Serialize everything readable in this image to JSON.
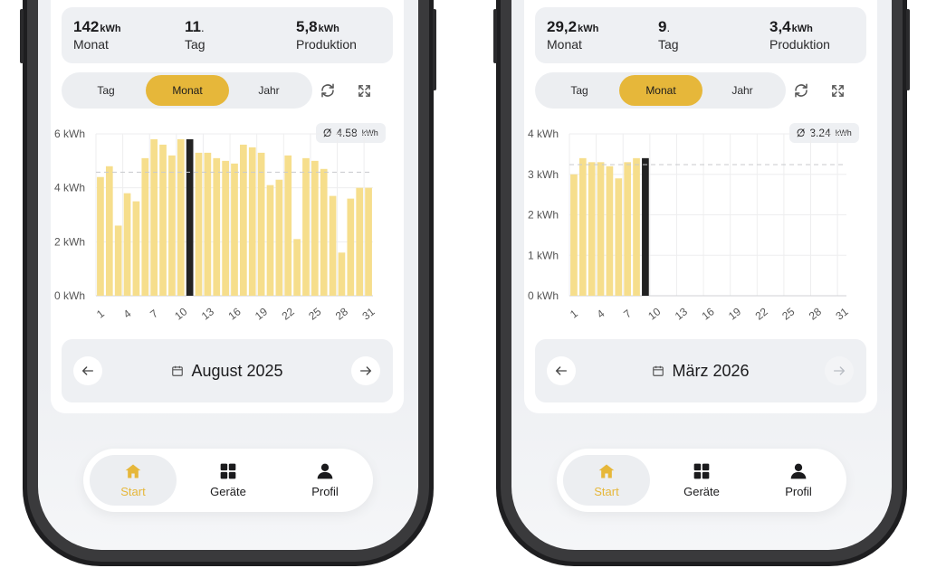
{
  "phones": [
    {
      "stats": {
        "month_value": "142",
        "month_unit": "kWh",
        "month_label": "Monat",
        "day_value": "11",
        "day_suffix": ".",
        "day_label": "Tag",
        "production_value": "5,8",
        "production_unit": "kWh",
        "production_label": "Produktion"
      },
      "segments": [
        "Tag",
        "Monat",
        "Jahr"
      ],
      "active_segment": "Monat",
      "average": {
        "prefix": "Ø",
        "value": "4.58",
        "unit": "kWh"
      },
      "period_label": "August 2025",
      "next_enabled": true,
      "chart_data": {
        "type": "bar",
        "x": [
          1,
          2,
          3,
          4,
          5,
          6,
          7,
          8,
          9,
          10,
          11,
          12,
          13,
          14,
          15,
          16,
          17,
          18,
          19,
          20,
          21,
          22,
          23,
          24,
          25,
          26,
          27,
          28,
          29,
          30,
          31
        ],
        "values": [
          4.4,
          4.8,
          2.6,
          3.8,
          3.5,
          5.1,
          5.8,
          5.6,
          5.2,
          5.8,
          5.8,
          5.3,
          5.3,
          5.1,
          5.0,
          4.9,
          5.6,
          5.5,
          5.3,
          4.1,
          4.3,
          5.2,
          2.1,
          5.1,
          5.0,
          4.7,
          3.7,
          1.6,
          3.6,
          4.0,
          4.0
        ],
        "selected_index": 10,
        "average": 4.58,
        "ylim": [
          0,
          6
        ],
        "yticks": [
          0,
          2,
          4,
          6
        ],
        "ytick_labels": [
          "0 kWh",
          "2 kWh",
          "4 kWh",
          "6 kWh"
        ],
        "xtick_labels": [
          "1",
          "4",
          "7",
          "10",
          "13",
          "16",
          "19",
          "22",
          "25",
          "28",
          "31"
        ],
        "bar_color": "#f6de8c",
        "selected_color": "#222222"
      }
    },
    {
      "stats": {
        "month_value": "29,2",
        "month_unit": "kWh",
        "month_label": "Monat",
        "day_value": "9",
        "day_suffix": ".",
        "day_label": "Tag",
        "production_value": "3,4",
        "production_unit": "kWh",
        "production_label": "Produktion"
      },
      "segments": [
        "Tag",
        "Monat",
        "Jahr"
      ],
      "active_segment": "Monat",
      "average": {
        "prefix": "Ø",
        "value": "3.24",
        "unit": "kWh"
      },
      "period_label": "März 2026",
      "next_enabled": false,
      "chart_data": {
        "type": "bar",
        "x": [
          1,
          2,
          3,
          4,
          5,
          6,
          7,
          8,
          9,
          10,
          11,
          12,
          13,
          14,
          15,
          16,
          17,
          18,
          19,
          20,
          21,
          22,
          23,
          24,
          25,
          26,
          27,
          28,
          29,
          30,
          31
        ],
        "values": [
          3.0,
          3.4,
          3.3,
          3.3,
          3.2,
          2.9,
          3.3,
          3.4,
          3.4,
          null,
          null,
          null,
          null,
          null,
          null,
          null,
          null,
          null,
          null,
          null,
          null,
          null,
          null,
          null,
          null,
          null,
          null,
          null,
          null,
          null,
          null
        ],
        "selected_index": 8,
        "average": 3.24,
        "ylim": [
          0,
          4
        ],
        "yticks": [
          0,
          1,
          2,
          3,
          4
        ],
        "ytick_labels": [
          "0 kWh",
          "1 kWh",
          "2 kWh",
          "3 kWh",
          "4 kWh"
        ],
        "xtick_labels": [
          "1",
          "4",
          "7",
          "10",
          "13",
          "16",
          "19",
          "22",
          "25",
          "28",
          "31"
        ],
        "bar_color": "#f6de8c",
        "selected_color": "#222222"
      }
    }
  ],
  "tabbar": {
    "items": [
      {
        "label": "Start",
        "icon": "home-icon"
      },
      {
        "label": "Geräte",
        "icon": "grid-icon"
      },
      {
        "label": "Profil",
        "icon": "person-icon"
      }
    ],
    "active": "Start",
    "accent": "#e6b73a"
  }
}
